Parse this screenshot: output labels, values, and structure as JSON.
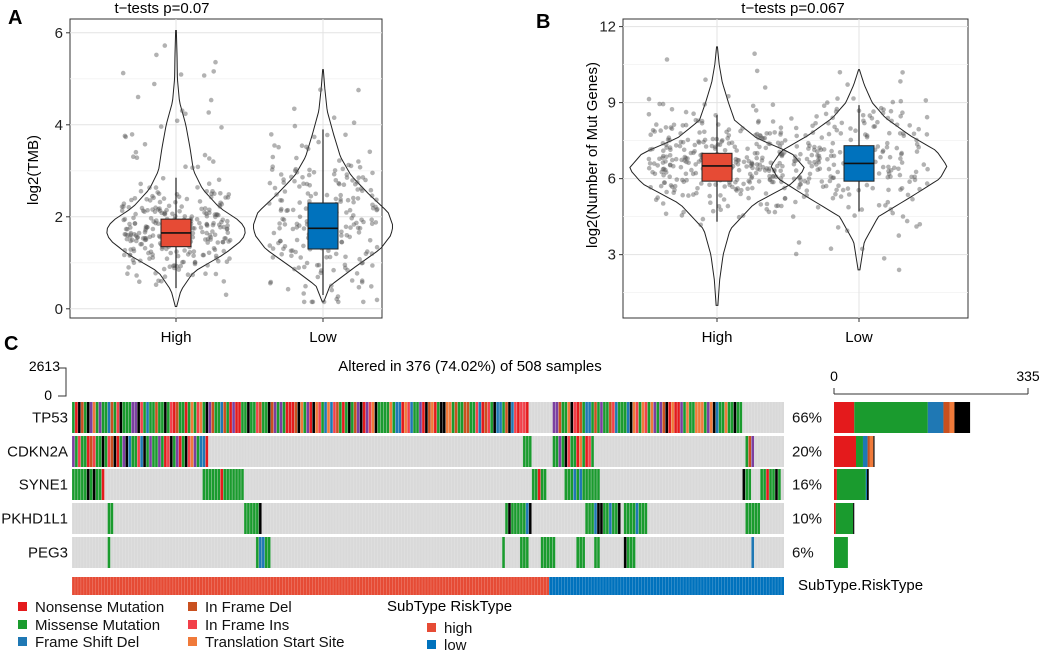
{
  "chart_data": [
    {
      "type": "violin",
      "panel_label": "A",
      "title": "t−tests p=0.07",
      "xlabel": "",
      "ylabel": "log2(TMB)",
      "categories": [
        "High",
        "Low"
      ],
      "ylim": [
        -0.2,
        6.3
      ],
      "yticks": [
        0,
        2,
        4,
        6
      ],
      "colors": [
        "#E64B35",
        "#0072BD"
      ],
      "groups": [
        {
          "name": "High",
          "min": 0.05,
          "q1": 1.35,
          "median": 1.65,
          "q3": 1.95,
          "max": 6.05,
          "whisker_low": 0.45,
          "whisker_high": 2.85,
          "density": [
            [
              0.05,
              0.01
            ],
            [
              0.4,
              0.07
            ],
            [
              0.8,
              0.25
            ],
            [
              1.2,
              0.7
            ],
            [
              1.5,
              0.95
            ],
            [
              1.7,
              1.0
            ],
            [
              1.9,
              0.92
            ],
            [
              2.2,
              0.62
            ],
            [
              2.6,
              0.38
            ],
            [
              3.0,
              0.25
            ],
            [
              3.5,
              0.2
            ],
            [
              4.0,
              0.14
            ],
            [
              4.5,
              0.05
            ],
            [
              5.0,
              0.02
            ],
            [
              5.5,
              0.015
            ],
            [
              6.05,
              0.005
            ]
          ]
        },
        {
          "name": "Low",
          "min": 0.15,
          "q1": 1.3,
          "median": 1.75,
          "q3": 2.3,
          "max": 5.2,
          "whisker_low": 0.3,
          "whisker_high": 3.9,
          "density": [
            [
              0.15,
              0.01
            ],
            [
              0.5,
              0.1
            ],
            [
              0.9,
              0.45
            ],
            [
              1.3,
              0.82
            ],
            [
              1.6,
              0.97
            ],
            [
              1.8,
              1.0
            ],
            [
              2.1,
              0.93
            ],
            [
              2.5,
              0.65
            ],
            [
              2.9,
              0.4
            ],
            [
              3.3,
              0.25
            ],
            [
              3.8,
              0.15
            ],
            [
              4.3,
              0.06
            ],
            [
              4.8,
              0.025
            ],
            [
              5.2,
              0.005
            ]
          ]
        }
      ]
    },
    {
      "type": "violin",
      "panel_label": "B",
      "title": "t−tests p=0.067",
      "xlabel": "",
      "ylabel": "log2(Number of Mut Genes)",
      "categories": [
        "High",
        "Low"
      ],
      "ylim": [
        0.5,
        12.3
      ],
      "yticks": [
        3,
        6,
        9,
        12
      ],
      "colors": [
        "#E64B35",
        "#0072BD"
      ],
      "groups": [
        {
          "name": "High",
          "min": 1.0,
          "q1": 5.9,
          "median": 6.5,
          "q3": 7.0,
          "max": 11.2,
          "whisker_low": 4.3,
          "whisker_high": 8.5,
          "density": [
            [
              1.0,
              0.01
            ],
            [
              2.0,
              0.03
            ],
            [
              3.0,
              0.07
            ],
            [
              4.0,
              0.15
            ],
            [
              5.0,
              0.42
            ],
            [
              5.8,
              0.85
            ],
            [
              6.4,
              1.0
            ],
            [
              7.0,
              0.85
            ],
            [
              7.6,
              0.45
            ],
            [
              8.3,
              0.2
            ],
            [
              9.0,
              0.13
            ],
            [
              9.8,
              0.06
            ],
            [
              10.5,
              0.025
            ],
            [
              11.2,
              0.005
            ]
          ]
        },
        {
          "name": "Low",
          "min": 2.4,
          "q1": 5.9,
          "median": 6.6,
          "q3": 7.3,
          "max": 10.3,
          "whisker_low": 4.7,
          "whisker_high": 8.9,
          "density": [
            [
              2.4,
              0.01
            ],
            [
              3.5,
              0.06
            ],
            [
              4.5,
              0.22
            ],
            [
              5.3,
              0.6
            ],
            [
              6.0,
              0.92
            ],
            [
              6.5,
              1.0
            ],
            [
              7.1,
              0.88
            ],
            [
              7.7,
              0.58
            ],
            [
              8.4,
              0.3
            ],
            [
              9.0,
              0.15
            ],
            [
              9.7,
              0.06
            ],
            [
              10.3,
              0.005
            ]
          ]
        }
      ]
    },
    {
      "type": "heatmap",
      "panel_label": "C",
      "title": "Altered in 376 (74.02%) of 508 samples",
      "tmb_scale_label": "2613",
      "tmb_scale_zero": "0",
      "genes": [
        "TP53",
        "CDKN2A",
        "SYNE1",
        "PKHD1L1",
        "PEG3"
      ],
      "percentages": [
        "66%",
        "20%",
        "16%",
        "10%",
        "6%"
      ],
      "right_axis": {
        "min": 0,
        "max": 335,
        "min_label": "0",
        "max_label": "335"
      },
      "right_bars": [
        [
          {
            "type": "Nonsense Mutation",
            "count": 35
          },
          {
            "type": "Missense Mutation",
            "count": 127
          },
          {
            "type": "Frame Shift Del",
            "count": 27
          },
          {
            "type": "In Frame Del",
            "count": 11
          },
          {
            "type": "Translation Start Site",
            "count": 8
          },
          {
            "type": "Other",
            "count": 27
          }
        ],
        [
          {
            "type": "Nonsense Mutation",
            "count": 38
          },
          {
            "type": "Missense Mutation",
            "count": 12
          },
          {
            "type": "Frame Shift Del",
            "count": 8
          },
          {
            "type": "In Frame Del",
            "count": 4
          },
          {
            "type": "Translation Start Site",
            "count": 6
          },
          {
            "type": "Other",
            "count": 2
          }
        ],
        [
          {
            "type": "Nonsense Mutation",
            "count": 5
          },
          {
            "type": "Missense Mutation",
            "count": 50
          },
          {
            "type": "Frame Shift Del",
            "count": 2
          },
          {
            "type": "Other",
            "count": 3
          }
        ],
        [
          {
            "type": "Nonsense Mutation",
            "count": 3
          },
          {
            "type": "Missense Mutation",
            "count": 30
          },
          {
            "type": "Other",
            "count": 2
          }
        ],
        [
          {
            "type": "Missense Mutation",
            "count": 24
          }
        ]
      ],
      "subtype_label": "SubType.RiskType",
      "subtype_high_fraction": 0.67
    }
  ],
  "legend": {
    "mutation_types": [
      {
        "label": "Nonsense Mutation",
        "color": "#E41A1C"
      },
      {
        "label": "Missense Mutation",
        "color": "#1A9B2E"
      },
      {
        "label": "Frame Shift Del",
        "color": "#1F78B4"
      },
      {
        "label": "In Frame Del",
        "color": "#C9501F"
      },
      {
        "label": "In Frame Ins",
        "color": "#F2404A"
      },
      {
        "label": "Translation Start Site",
        "color": "#F07A3A"
      }
    ],
    "subtype_title": "SubType RiskType",
    "subtypes": [
      {
        "label": "high",
        "color": "#E64B35"
      },
      {
        "label": "low",
        "color": "#0072BD"
      }
    ]
  },
  "extra_colors": {
    "Other": "#000000",
    "purple": "#7B3FA0",
    "background": "#D9D9D9",
    "panel_grid": "#EBEBEB"
  }
}
